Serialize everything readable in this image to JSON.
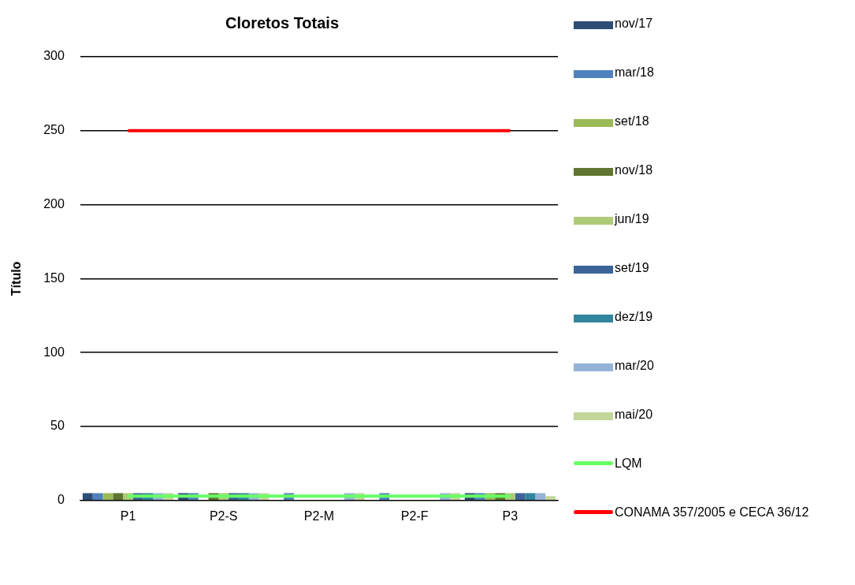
{
  "chart_data": {
    "type": "bar",
    "title": "Cloretos Totais",
    "ylabel": "Título",
    "categories": [
      "P1",
      "P2-S",
      "P2-M",
      "P2-F",
      "P3"
    ],
    "series": [
      {
        "name": "nov/17",
        "color": "#2c4d75",
        "values": [
          5,
          5,
          null,
          null,
          5
        ]
      },
      {
        "name": "mar/18",
        "color": "#4f81bd",
        "values": [
          5,
          5,
          5,
          5,
          5
        ]
      },
      {
        "name": "set/18",
        "color": "#9bbb59",
        "values": [
          5,
          null,
          null,
          null,
          5
        ]
      },
      {
        "name": "nov/18",
        "color": "#5f7530",
        "values": [
          5,
          5,
          null,
          null,
          5
        ]
      },
      {
        "name": "jun/19",
        "color": "#aecb7a",
        "values": [
          5,
          5,
          null,
          null,
          5
        ]
      },
      {
        "name": "set/19",
        "color": "#3c6496",
        "values": [
          5,
          5,
          null,
          null,
          5
        ]
      },
      {
        "name": "dez/19",
        "color": "#31859c",
        "values": [
          5,
          5,
          null,
          null,
          5
        ]
      },
      {
        "name": "mar/20",
        "color": "#95b3d7",
        "values": [
          5,
          5,
          5,
          5,
          5
        ]
      },
      {
        "name": "mai/20",
        "color": "#c3d69b",
        "values": [
          5,
          5,
          5,
          5,
          3
        ]
      },
      {
        "name": "LQM",
        "type": "line",
        "color": "#66ff66",
        "values": [
          3,
          3,
          3,
          3,
          3
        ]
      },
      {
        "name": "CONAMA 357/2005 e CECA 36/12",
        "type": "line",
        "color": "#ff0000",
        "values": [
          250,
          250,
          250,
          250,
          250
        ]
      }
    ],
    "ylim": [
      0,
      300
    ],
    "yticks": [
      0,
      50,
      100,
      150,
      200,
      250,
      300
    ],
    "grid": "y",
    "legend": "right",
    "marker": "none"
  }
}
